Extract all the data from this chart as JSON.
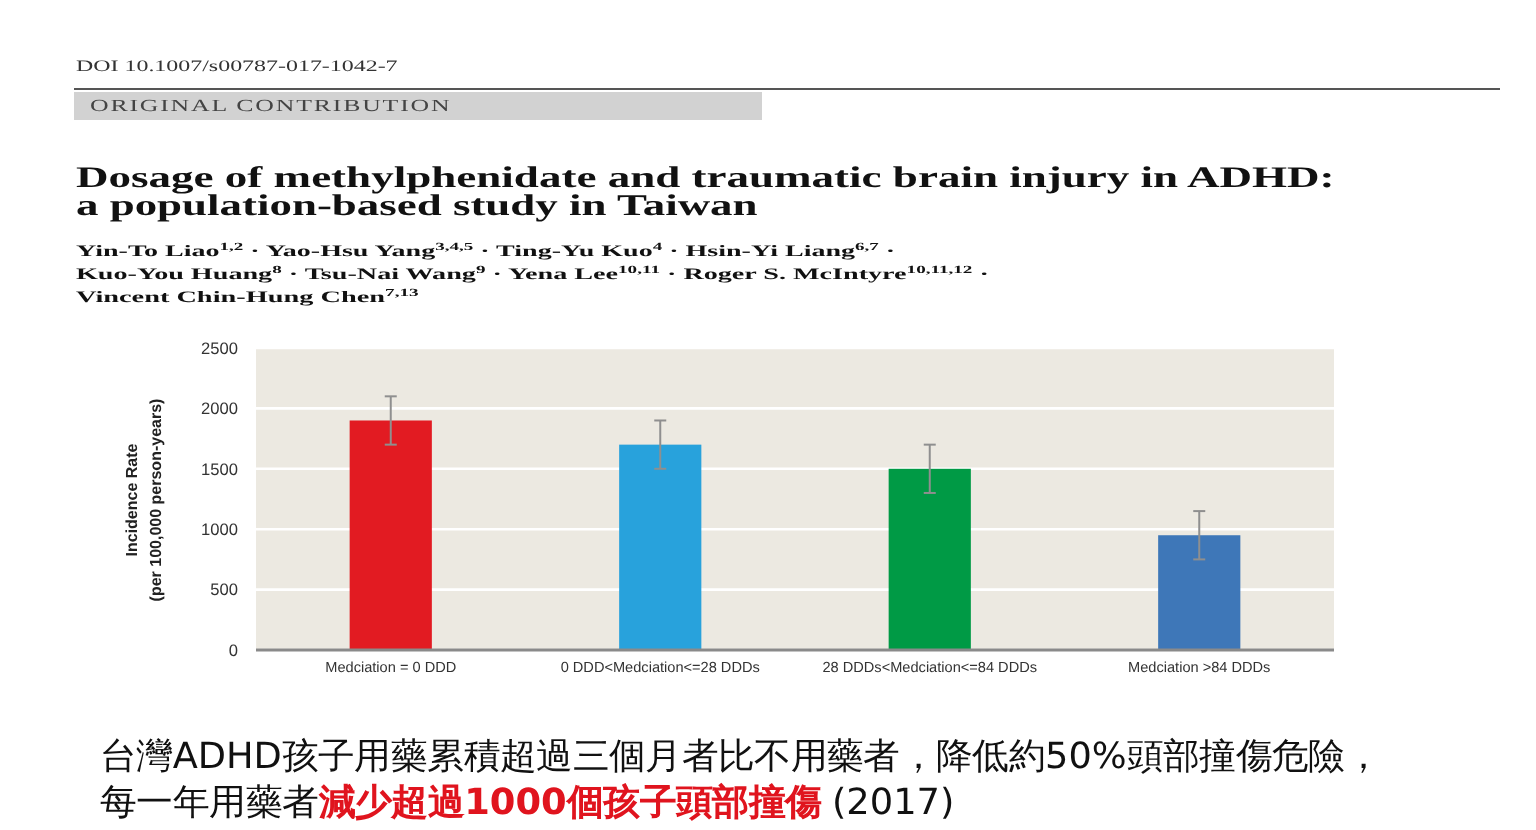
{
  "chart_data": {
    "type": "bar",
    "title": "Dosage of methylphenidate and traumatic brain injury in ADHD:\na population-based study in Taiwan",
    "ylabel": "Incidence Rate\n(per 100,000 person-years)",
    "categories": [
      "Medciation = 0 DDD",
      "0 DDD<Medciation<=28 DDDs",
      "28 DDDs<Medciation<=84 DDDs",
      "Medciation >84 DDDs"
    ],
    "values": [
      1900,
      1700,
      1500,
      950
    ],
    "colors": [
      "#e21b22",
      "#28a2dc",
      "#009a45",
      "#3e77b8"
    ],
    "errors": [
      200,
      200,
      200,
      200
    ],
    "ylim": [
      0,
      2500
    ],
    "yticks": [
      0,
      500,
      1000,
      1500,
      2000,
      2500
    ],
    "grid": "y",
    "annotations": [
      "DOI 10.1007/s00787-017-1042-7",
      "ORIGINAL CONTRIBUTION",
      "Yin-To Liao$^{1,2}$ · Yao-Hsu Yang$^{3,4,5}$ · Ting-Yu Kuo$^{4}$ · Hsin-Yi Liang$^{6,7}$ ·",
      "Kuo-You Huang$^{8}$ · Tsu-Nai Wang$^{9}$ · Yena Lee$^{10,11}$ · Roger S. McIntyre$^{10,11,12}$ ·",
      "Vincent Chin-Hung Chen$^{7,13}$",
      "台灣ADHD孩子用藥累積超過三個月者比不用藥者，降低約50%頭部撞傷危險，",
      "每一年用藥者",
      "減少超過1000個孩子頭部撞傷",
      "(2017)"
    ]
  }
}
